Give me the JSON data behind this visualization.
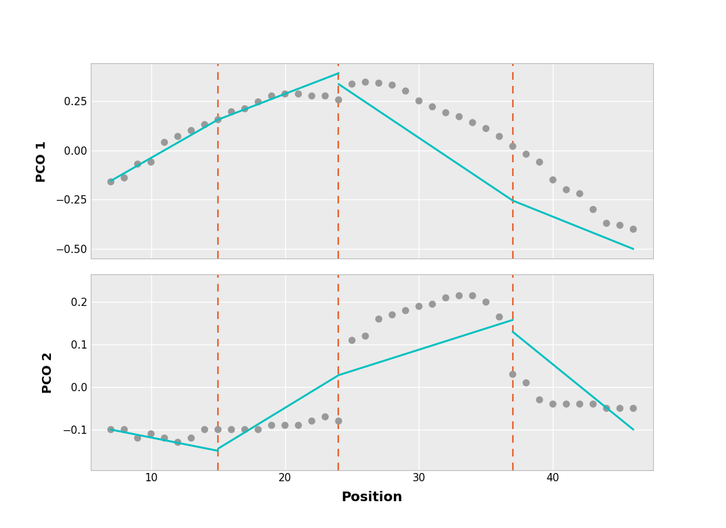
{
  "breakpoints": [
    15,
    24,
    37
  ],
  "scatter_color": "#999999",
  "line_color": "#00C0C0",
  "dashed_color": "#E8602C",
  "bg_color": "#EBEBEB",
  "grid_color": "#FFFFFF",
  "pco1_ylabel": "PCO 1",
  "pco2_ylabel": "PCO 2",
  "xlabel": "Position",
  "pco1_ylim": [
    -0.55,
    0.44
  ],
  "pco2_ylim": [
    -0.195,
    0.265
  ],
  "pco1_yticks": [
    0.25,
    0.0,
    -0.25,
    -0.5
  ],
  "pco2_yticks": [
    0.2,
    0.1,
    0.0,
    -0.1
  ],
  "xticks": [
    10,
    20,
    30,
    40
  ],
  "xlim": [
    5.5,
    47.5
  ],
  "pco1_data_x": [
    7,
    8,
    9,
    10,
    11,
    12,
    13,
    14,
    15,
    16,
    17,
    18,
    19,
    20,
    21,
    22,
    23,
    24,
    25,
    26,
    27,
    28,
    29,
    30,
    31,
    32,
    33,
    34,
    35,
    36,
    37,
    38,
    39,
    40,
    41,
    42,
    43,
    44,
    45,
    46
  ],
  "pco1_data_y": [
    -0.16,
    -0.14,
    -0.07,
    -0.06,
    0.04,
    0.07,
    0.1,
    0.13,
    0.155,
    0.195,
    0.21,
    0.245,
    0.275,
    0.285,
    0.285,
    0.275,
    0.275,
    0.255,
    0.335,
    0.345,
    0.34,
    0.33,
    0.3,
    0.25,
    0.22,
    0.19,
    0.17,
    0.14,
    0.11,
    0.07,
    0.02,
    -0.02,
    -0.06,
    -0.15,
    -0.2,
    -0.22,
    -0.3,
    -0.37,
    -0.38,
    -0.4
  ],
  "pco2_data_x": [
    7,
    8,
    9,
    10,
    11,
    12,
    13,
    14,
    15,
    16,
    17,
    18,
    19,
    20,
    21,
    22,
    23,
    24,
    25,
    26,
    27,
    28,
    29,
    30,
    31,
    32,
    33,
    34,
    35,
    36,
    37,
    38,
    39,
    40,
    41,
    42,
    43,
    44,
    45,
    46
  ],
  "pco2_data_y": [
    -0.1,
    -0.1,
    -0.12,
    -0.11,
    -0.12,
    -0.13,
    -0.12,
    -0.1,
    -0.1,
    -0.1,
    -0.1,
    -0.1,
    -0.09,
    -0.09,
    -0.09,
    -0.08,
    -0.07,
    -0.08,
    0.11,
    0.12,
    0.16,
    0.17,
    0.18,
    0.19,
    0.195,
    0.21,
    0.215,
    0.215,
    0.2,
    0.165,
    0.03,
    0.01,
    -0.03,
    -0.04,
    -0.04,
    -0.04,
    -0.04,
    -0.05,
    -0.05,
    -0.05
  ],
  "pco1_segments_disc": [
    {
      "x": [
        7,
        15
      ],
      "y": [
        -0.155,
        0.155
      ]
    },
    {
      "x": [
        15,
        24
      ],
      "y": [
        0.155,
        0.39
      ]
    },
    {
      "x": [
        24,
        37
      ],
      "y": [
        0.335,
        -0.255
      ]
    },
    {
      "x": [
        37,
        46
      ],
      "y": [
        -0.255,
        -0.5
      ]
    }
  ],
  "pco2_segments_disc": [
    {
      "x": [
        7,
        15
      ],
      "y": [
        -0.1,
        -0.15
      ]
    },
    {
      "x": [
        15,
        24
      ],
      "y": [
        -0.145,
        0.028
      ]
    },
    {
      "x": [
        24,
        37
      ],
      "y": [
        0.028,
        0.158
      ]
    },
    {
      "x": [
        37,
        46
      ],
      "y": [
        0.13,
        -0.1
      ]
    }
  ]
}
